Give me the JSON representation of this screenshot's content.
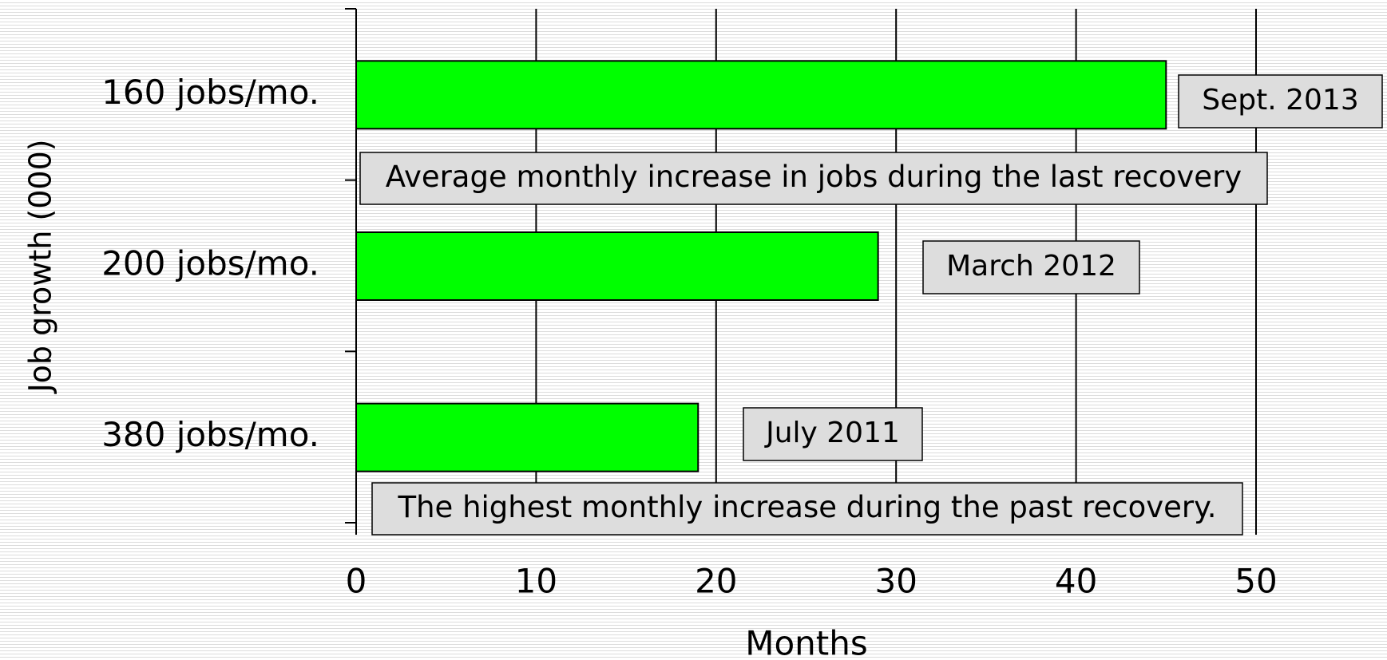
{
  "chart_data": {
    "type": "bar",
    "orientation": "horizontal",
    "categories": [
      "160 jobs/mo.",
      "200 jobs/mo.",
      "380 jobs/mo."
    ],
    "values": [
      45,
      29,
      19
    ],
    "color": "#00ff00",
    "bar_labels": [
      "Sept. 2013",
      "March 2012",
      "July 2011"
    ],
    "annotations": [
      "Average monthly increase in jobs during the last recovery",
      "The highest monthly increase during the past recovery."
    ],
    "xlabel": "Months",
    "ylabel": "Job growth (000)",
    "xlim": [
      0,
      50
    ],
    "xticks": [
      0,
      10,
      20,
      30,
      40,
      50
    ],
    "grid": true
  }
}
